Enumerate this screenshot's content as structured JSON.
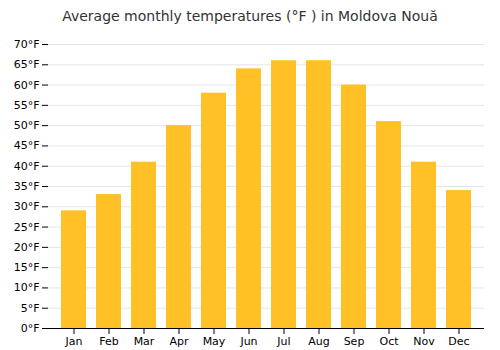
{
  "chart_data": {
    "type": "bar",
    "title": "Average monthly temperatures (°F ) in Moldova Nouă",
    "categories": [
      "Jan",
      "Feb",
      "Mar",
      "Apr",
      "May",
      "Jun",
      "Jul",
      "Aug",
      "Sep",
      "Oct",
      "Nov",
      "Dec"
    ],
    "values": [
      29,
      33,
      41,
      50,
      58,
      64,
      66,
      66,
      60,
      51,
      41,
      34
    ],
    "color": "#FFC125",
    "ylim": [
      0,
      70
    ],
    "yticks": [
      {
        "value": 0,
        "label": "0°F"
      },
      {
        "value": 5,
        "label": "5°F"
      },
      {
        "value": 10,
        "label": "10°F"
      },
      {
        "value": 15,
        "label": "15°F"
      },
      {
        "value": 20,
        "label": "20°F"
      },
      {
        "value": 25,
        "label": "25°F"
      },
      {
        "value": 30,
        "label": "30°F"
      },
      {
        "value": 35,
        "label": "35°F"
      },
      {
        "value": 40,
        "label": "40°F"
      },
      {
        "value": 45,
        "label": "45°F"
      },
      {
        "value": 50,
        "label": "50°F"
      },
      {
        "value": 55,
        "label": "55°F"
      },
      {
        "value": 60,
        "label": "60°F"
      },
      {
        "value": 65,
        "label": "65°F"
      },
      {
        "value": 70,
        "label": "70°F"
      }
    ],
    "grid": true
  }
}
